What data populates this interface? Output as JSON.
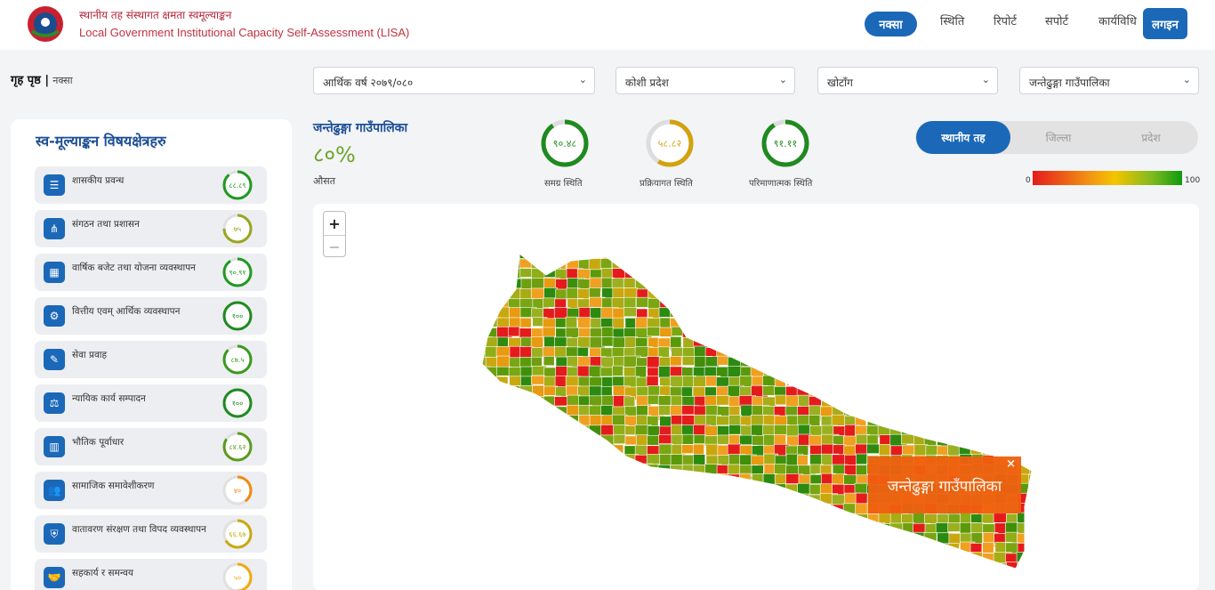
{
  "header": {
    "brand_np": "स्थानीय तह संस्थागत क्षमता स्वमूल्याङ्कन",
    "brand_en": "Local Government Institutional Capacity Self-Assessment (LISA)",
    "nav": [
      "नक्सा",
      "स्थिति",
      "रिपोर्ट",
      "सपोर्ट",
      "कार्यविधि"
    ],
    "login": "लगइन"
  },
  "breadcrumb": {
    "home": "गृह पृष्ठ |",
    "current": "नक्सा"
  },
  "filters": {
    "year": "आर्थिक वर्ष २०७९/०८०",
    "province": "कोशी प्रदेश",
    "district": "खोटाँग",
    "municipality": "जन्तेढुङ्गा गाउँपालिका"
  },
  "panel": {
    "title": "स्व-मूल्याङ्कन विषयक्षेत्रहरु",
    "items": [
      {
        "label": "शासकीय प्रवन्ध",
        "score": "८८.८९",
        "value": 88.89,
        "color": "#1f9a1f"
      },
      {
        "label": "संगठन तथा प्रशासन",
        "score": "७५",
        "value": 75,
        "color": "#9aa51f"
      },
      {
        "label": "वार्षिक बजेट तथा योजना व्यवस्थापन",
        "score": "९०.९१",
        "value": 90.91,
        "color": "#1f9a1f"
      },
      {
        "label": "वित्तीय एवम् आर्थिक व्यवस्थापन",
        "score": "१००",
        "value": 100,
        "color": "#1f8a1f"
      },
      {
        "label": "सेवा प्रवाह",
        "score": "८७.५",
        "value": 87.5,
        "color": "#3a9a1f"
      },
      {
        "label": "न्यायिक कार्य सम्पादन",
        "score": "१००",
        "value": 100,
        "color": "#1f8a1f"
      },
      {
        "label": "भौतिक पूर्वाधार",
        "score": "८४.६२",
        "value": 84.62,
        "color": "#5a9a1f"
      },
      {
        "label": "सामाजिक समावेशीकरण",
        "score": "४०",
        "value": 40,
        "color": "#f08a10"
      },
      {
        "label": "वातावरण संरक्षण तथा विपद व्यवस्थापन",
        "score": "६६.६७",
        "value": 66.67,
        "color": "#c9a80f"
      },
      {
        "label": "सहकार्य र समन्वय",
        "score": "५०",
        "value": 50,
        "color": "#f5a70f"
      }
    ]
  },
  "summary": {
    "municipality": "जन्तेढुङ्गा गाउँपालिका",
    "percent": "८०%",
    "avg_label": "औसत",
    "rings": [
      {
        "value_text": "९०.४८",
        "value": 90.48,
        "label": "समग्र स्थिति",
        "color": "#1f8a1f"
      },
      {
        "value_text": "५८.८२",
        "value": 58.82,
        "label": "प्रक्रियागत स्थिति",
        "color": "#d4a20f"
      },
      {
        "value_text": "९१.११",
        "value": 91.11,
        "label": "परिमाणात्मक स्थिति",
        "color": "#1f8a1f"
      }
    ]
  },
  "toggle": {
    "local": "स्थानीय तह",
    "district": "जिल्ला",
    "province": "प्रदेश"
  },
  "legend": {
    "min": "0",
    "max": "100"
  },
  "map": {
    "zoom_in": "+",
    "zoom_out": "−",
    "tooltip": "जन्तेढुङ्गा गाउँपालिका",
    "tooltip_close": "×"
  }
}
